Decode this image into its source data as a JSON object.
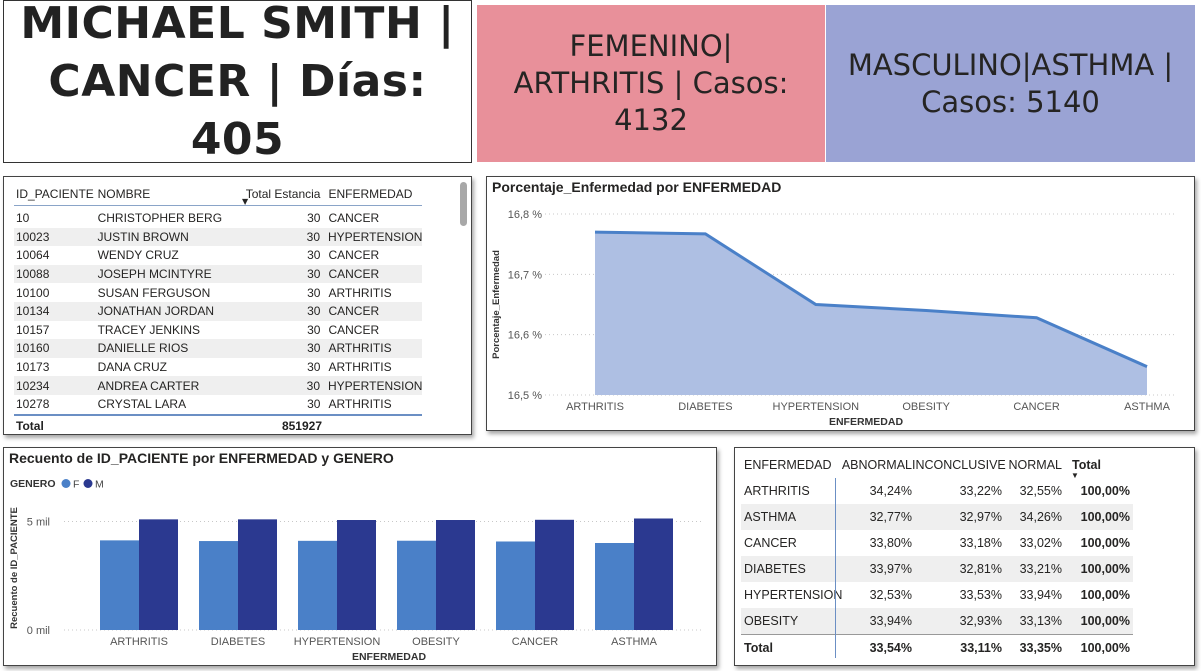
{
  "cards": {
    "patient": {
      "line1": "MICHAEL SMITH |",
      "line2": "CANCER | Días: 405",
      "bg": "#ffffff"
    },
    "female": {
      "line1": "FEMENINO|",
      "line2": "ARTHRITIS | Casos:",
      "line3": "4132",
      "bg": "#e8909a"
    },
    "male": {
      "line1": "MASCULINO|ASTHMA |",
      "line2": "Casos: 5140",
      "bg": "#9aa3d4"
    }
  },
  "patients_table": {
    "headers": [
      "ID_PACIENTE",
      "NOMBRE",
      "Total Estancia",
      "ENFERMEDAD"
    ],
    "rows": [
      [
        "10",
        "CHRISTOPHER BERG",
        "30",
        "CANCER"
      ],
      [
        "10023",
        "JUSTIN BROWN",
        "30",
        "HYPERTENSION"
      ],
      [
        "10064",
        "WENDY CRUZ",
        "30",
        "CANCER"
      ],
      [
        "10088",
        "JOSEPH MCINTYRE",
        "30",
        "CANCER"
      ],
      [
        "10100",
        "SUSAN FERGUSON",
        "30",
        "ARTHRITIS"
      ],
      [
        "10134",
        "JONATHAN JORDAN",
        "30",
        "CANCER"
      ],
      [
        "10157",
        "TRACEY JENKINS",
        "30",
        "CANCER"
      ],
      [
        "10160",
        "DANIELLE RIOS",
        "30",
        "ARTHRITIS"
      ],
      [
        "10173",
        "DANA CRUZ",
        "30",
        "ARTHRITIS"
      ],
      [
        "10234",
        "ANDREA CARTER",
        "30",
        "HYPERTENSION"
      ],
      [
        "10278",
        "CRYSTAL LARA",
        "30",
        "ARTHRITIS"
      ]
    ],
    "total_label": "Total",
    "total_value": "851927"
  },
  "chart_data": [
    {
      "type": "area",
      "title": "Porcentaje_Enfermedad por ENFERMEDAD",
      "xlabel": "ENFERMEDAD",
      "ylabel": "Porcentaje_Enfermedad",
      "categories": [
        "ARTHRITIS",
        "DIABETES",
        "HYPERTENSION",
        "OBESITY",
        "CANCER",
        "ASTHMA"
      ],
      "values": [
        16.77,
        16.767,
        16.65,
        16.64,
        16.628,
        16.547
      ],
      "yticks": [
        "16,8 %",
        "16,7 %",
        "16,6 %",
        "16,5 %"
      ],
      "ylim": [
        16.5,
        16.8
      ],
      "color": "#4a80c8",
      "fill": "#aebfe3",
      "grid": true
    },
    {
      "type": "bar",
      "title": "Recuento de ID_PACIENTE por ENFERMEDAD y GENERO",
      "xlabel": "ENFERMEDAD",
      "ylabel": "Recuento de ID_PACIENTE",
      "legend_title": "GENERO",
      "categories": [
        "ARTHRITIS",
        "DIABETES",
        "HYPERTENSION",
        "OBESITY",
        "CANCER",
        "ASTHMA"
      ],
      "series": [
        {
          "name": "F",
          "values": [
            4132,
            4100,
            4110,
            4115,
            4080,
            4010
          ],
          "color": "#4a80c8"
        },
        {
          "name": "M",
          "values": [
            5100,
            5100,
            5070,
            5070,
            5080,
            5140
          ],
          "color": "#2b3990"
        }
      ],
      "yticks": [
        "5 mil",
        "0 mil"
      ],
      "ylim": [
        0,
        5900
      ],
      "grid": true
    }
  ],
  "pivot": {
    "headers": [
      "ENFERMEDAD",
      "ABNORMAL",
      "INCONCLUSIVE",
      "NORMAL",
      "Total"
    ],
    "rows": [
      [
        "ARTHRITIS",
        "34,24%",
        "33,22%",
        "32,55%",
        "100,00%"
      ],
      [
        "ASTHMA",
        "32,77%",
        "32,97%",
        "34,26%",
        "100,00%"
      ],
      [
        "CANCER",
        "33,80%",
        "33,18%",
        "33,02%",
        "100,00%"
      ],
      [
        "DIABETES",
        "33,97%",
        "32,81%",
        "33,21%",
        "100,00%"
      ],
      [
        "HYPERTENSION",
        "32,53%",
        "33,53%",
        "33,94%",
        "100,00%"
      ],
      [
        "OBESITY",
        "33,94%",
        "32,93%",
        "33,13%",
        "100,00%"
      ]
    ],
    "total": [
      "Total",
      "33,54%",
      "33,11%",
      "33,35%",
      "100,00%"
    ]
  }
}
